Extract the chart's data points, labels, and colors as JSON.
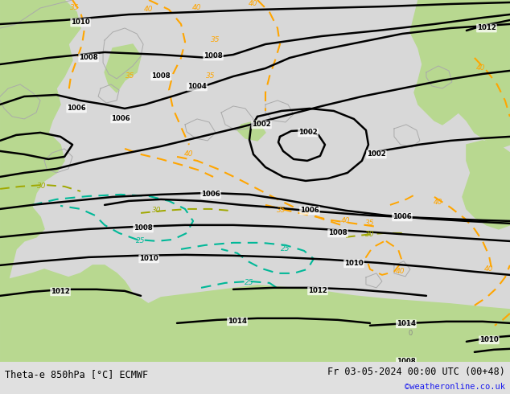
{
  "title_left": "Theta-e 850hPa [°C] ECMWF",
  "title_right": "Fr 03-05-2024 00:00 UTC (00+48)",
  "copyright": "©weatheronline.co.uk",
  "bg_color": "#ffffff",
  "land_green": "#b8d890",
  "sea_gray": "#d8d8d8",
  "isobar_color": "#000000",
  "theta_orange": "#ffa500",
  "theta_cyan": "#00c8a0",
  "theta_yellow": "#b0b800",
  "coast_color": "#aaaaaa",
  "figsize": [
    6.34,
    4.9
  ],
  "dpi": 100
}
